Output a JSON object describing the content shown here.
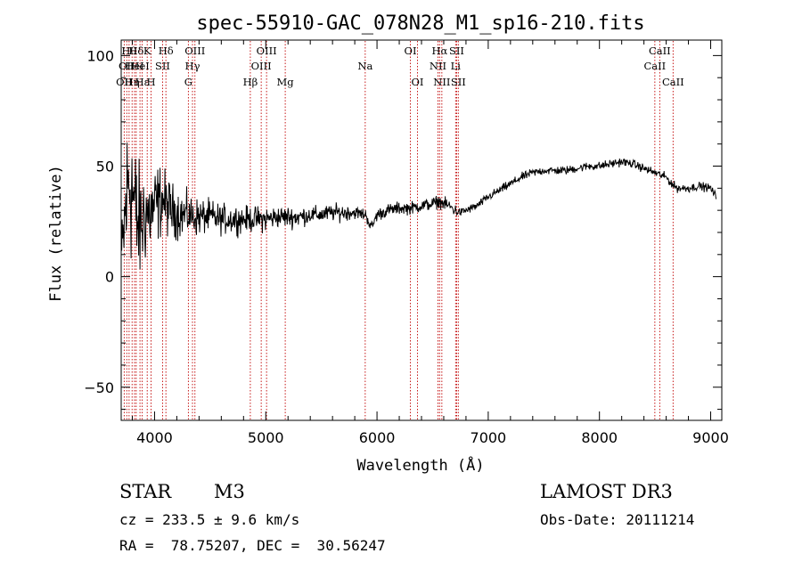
{
  "chart_data": {
    "type": "line",
    "title": "spec-55910-GAC_078N28_M1_sp16-210.fits",
    "xlabel": "Wavelength (Å)",
    "ylabel": "Flux (relative)",
    "xlim": [
      3700,
      9100
    ],
    "ylim": [
      -65,
      107
    ],
    "xticks": [
      4000,
      5000,
      6000,
      7000,
      8000,
      9000
    ],
    "yticks": [
      -50,
      0,
      50,
      100
    ],
    "grid": false,
    "series": [
      {
        "name": "spectrum",
        "x": [
          3710,
          3740,
          3770,
          3800,
          3830,
          3860,
          3890,
          3920,
          3950,
          3980,
          4010,
          4040,
          4070,
          4100,
          4150,
          4200,
          4250,
          4300,
          4350,
          4400,
          4450,
          4500,
          4600,
          4700,
          4800,
          4900,
          5000,
          5100,
          5200,
          5300,
          5400,
          5500,
          5600,
          5700,
          5800,
          5900,
          5950,
          6000,
          6100,
          6200,
          6300,
          6400,
          6500,
          6560,
          6600,
          6650,
          6700,
          6750,
          6800,
          6900,
          7000,
          7100,
          7200,
          7300,
          7400,
          7500,
          7600,
          7700,
          7800,
          7900,
          8000,
          8100,
          8200,
          8300,
          8400,
          8500,
          8600,
          8650,
          8700,
          8800,
          8900,
          9000,
          9050
        ],
        "y": [
          10,
          30,
          45,
          40,
          28,
          22,
          25,
          30,
          28,
          30,
          32,
          34,
          35,
          33,
          30,
          29,
          28,
          28,
          27,
          27,
          27,
          27,
          26,
          26,
          26,
          26,
          26,
          27,
          27,
          27,
          28,
          28,
          29,
          29,
          29,
          28,
          22,
          28,
          30,
          31,
          31,
          32,
          33,
          34,
          33,
          32,
          30,
          29,
          30,
          32,
          36,
          39,
          42,
          45,
          47,
          48,
          48,
          48,
          49,
          50,
          50,
          51,
          52,
          51,
          49,
          47,
          45,
          42,
          40,
          40,
          41,
          40,
          36
        ],
        "amp": [
          20,
          35,
          40,
          38,
          34,
          30,
          28,
          25,
          22,
          20,
          20,
          18,
          16,
          15,
          13,
          12,
          11,
          10,
          9,
          9,
          8,
          8,
          7,
          7,
          6,
          6,
          6,
          5,
          5,
          5,
          4,
          4,
          4,
          4,
          3,
          3,
          3,
          3,
          3,
          3,
          3,
          3,
          3,
          3,
          3,
          3,
          3,
          2,
          2,
          2,
          2,
          2,
          2,
          2,
          2,
          2,
          2,
          2,
          2,
          2,
          2,
          2,
          2,
          2,
          2,
          2,
          2,
          2,
          2,
          2,
          2,
          2,
          2
        ]
      }
    ],
    "lines": [
      {
        "wl": 3727,
        "row": 2,
        "label": "OII"
      },
      {
        "wl": 3750,
        "row": 1,
        "label": "OII"
      },
      {
        "wl": 3771,
        "row": 0,
        "label": "Hθ"
      },
      {
        "wl": 3798,
        "row": 2,
        "label": "Hη"
      },
      {
        "wl": 3820,
        "row": 1,
        "label": "HeI"
      },
      {
        "wl": 3835,
        "row": 0,
        "label": "Hδ"
      },
      {
        "wl": 3869,
        "row": 1,
        "label": "HeI"
      },
      {
        "wl": 3889,
        "row": 2,
        "label": "Hε"
      },
      {
        "wl": 3934,
        "row": 0,
        "label": "K"
      },
      {
        "wl": 3969,
        "row": 2,
        "label": "H"
      },
      {
        "wl": 4072,
        "row": 1,
        "label": "SII"
      },
      {
        "wl": 4102,
        "row": 0,
        "label": "Hδ"
      },
      {
        "wl": 4304,
        "row": 2,
        "label": "G"
      },
      {
        "wl": 4341,
        "row": 1,
        "label": "Hγ"
      },
      {
        "wl": 4363,
        "row": 0,
        "label": "OIII"
      },
      {
        "wl": 4861,
        "row": 2,
        "label": "Hβ"
      },
      {
        "wl": 4959,
        "row": 1,
        "label": "OIII"
      },
      {
        "wl": 5007,
        "row": 0,
        "label": "OIII"
      },
      {
        "wl": 5175,
        "row": 2,
        "label": "Mg"
      },
      {
        "wl": 5894,
        "row": 1,
        "label": "Na"
      },
      {
        "wl": 6300,
        "row": 0,
        "label": "OI"
      },
      {
        "wl": 6364,
        "row": 2,
        "label": "OI"
      },
      {
        "wl": 6548,
        "row": 1,
        "label": "NII"
      },
      {
        "wl": 6563,
        "row": 0,
        "label": "Hα"
      },
      {
        "wl": 6583,
        "row": 2,
        "label": "NII"
      },
      {
        "wl": 6707,
        "row": 1,
        "label": "Li"
      },
      {
        "wl": 6716,
        "row": 0,
        "label": "SII"
      },
      {
        "wl": 6731,
        "row": 2,
        "label": "SII"
      },
      {
        "wl": 8498,
        "row": 1,
        "label": "CaII"
      },
      {
        "wl": 8542,
        "row": 0,
        "label": "CaII"
      },
      {
        "wl": 8662,
        "row": 2,
        "label": "CaII"
      }
    ]
  },
  "info": {
    "class_label": "STAR",
    "subclass": "M3",
    "survey": "LAMOST DR3",
    "cz": "cz = 233.5 ± 9.6 km/s",
    "obs_date": "Obs-Date: 20111214",
    "coords": "RA =  78.75207, DEC =  30.56247"
  },
  "colors": {
    "axis": "#000000",
    "line_marker": "#c00000",
    "spectrum": "#000000"
  }
}
